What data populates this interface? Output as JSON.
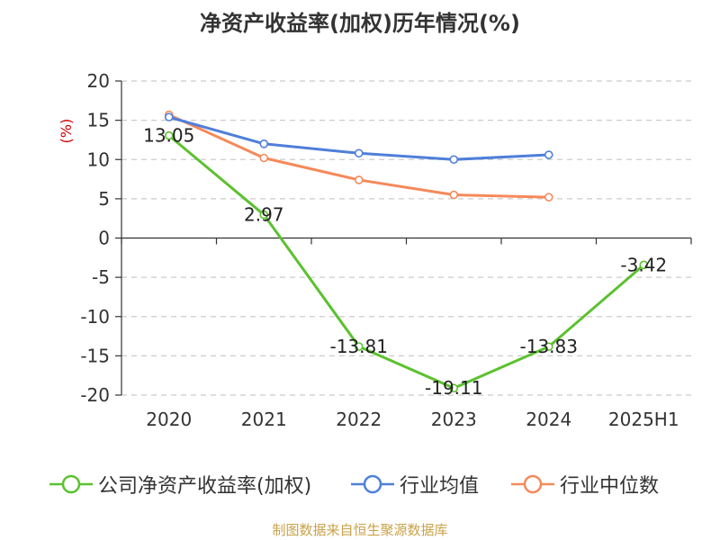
{
  "title": "净资产收益率(加权)历年情况(%)",
  "source": "制图数据来自恒生聚源数据库",
  "chart_data": {
    "type": "line",
    "title": "净资产收益率(加权)历年情况(%)",
    "ylabel": "(%)",
    "ylim": [
      -20,
      20
    ],
    "yticks": [
      20,
      15,
      10,
      5,
      0,
      -5,
      -10,
      -15,
      -20
    ],
    "categories": [
      "2020",
      "2021",
      "2022",
      "2023",
      "2024",
      "2025H1"
    ],
    "grid": true,
    "legend_position": "bottom",
    "series": [
      {
        "name": "公司净资产收益率(加权)",
        "color": "#5bc12f",
        "values": [
          13.05,
          2.97,
          -13.81,
          -19.11,
          -13.83,
          -3.42
        ],
        "labels": [
          "13.05",
          "2.97",
          "-13.81",
          "-19.11",
          "-13.83",
          "-3.42"
        ]
      },
      {
        "name": "行业均值",
        "color": "#4f7fd9",
        "values": [
          15.4,
          12.0,
          10.8,
          10.0,
          10.6,
          null
        ]
      },
      {
        "name": "行业中位数",
        "color": "#f5895a",
        "values": [
          15.7,
          10.2,
          7.4,
          5.5,
          5.2,
          null
        ]
      }
    ]
  }
}
